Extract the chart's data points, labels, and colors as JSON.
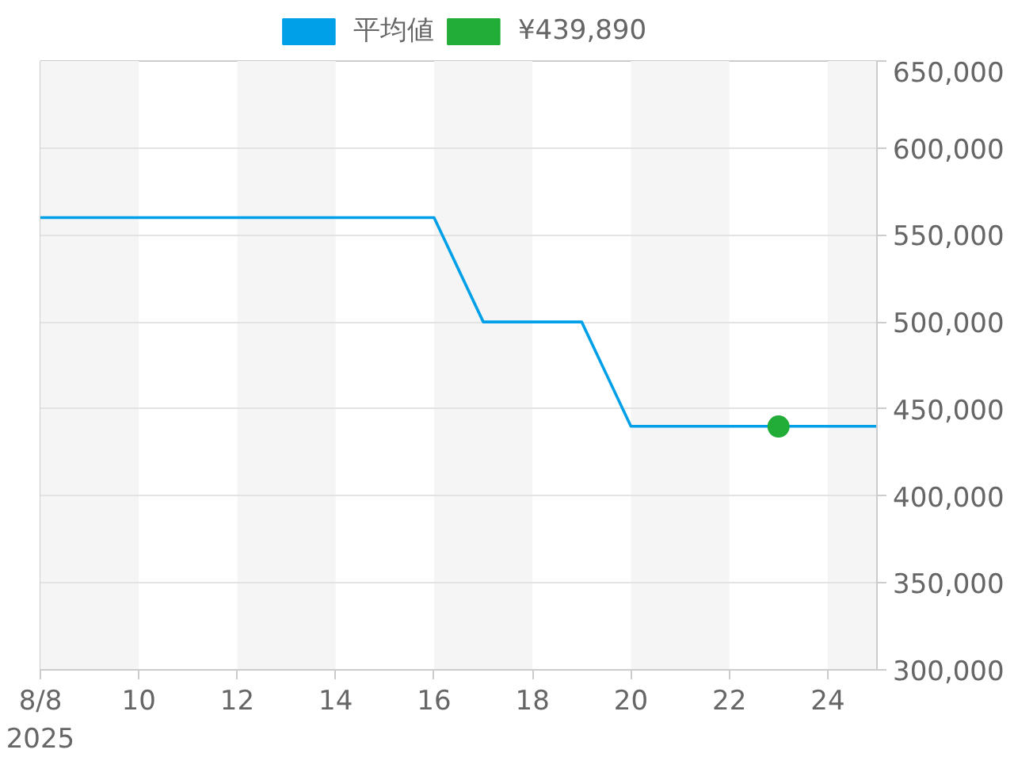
{
  "chart_data": {
    "type": "line",
    "x": [
      "2025-08-08",
      "2025-08-09",
      "2025-08-10",
      "2025-08-11",
      "2025-08-12",
      "2025-08-13",
      "2025-08-14",
      "2025-08-15",
      "2025-08-16",
      "2025-08-17",
      "2025-08-18",
      "2025-08-19",
      "2025-08-20",
      "2025-08-21",
      "2025-08-22",
      "2025-08-23",
      "2025-08-24",
      "2025-08-25"
    ],
    "series": [
      {
        "name": "平均値",
        "color": "#00a0e9",
        "line_style": "solid",
        "values": [
          560000,
          560000,
          560000,
          560000,
          560000,
          560000,
          560000,
          560000,
          560000,
          500000,
          500000,
          500000,
          440000,
          440000,
          440000,
          440000,
          440000,
          440000
        ]
      },
      {
        "name": "¥439,890",
        "type": "scatter",
        "marker": "circle",
        "color": "#22ac38",
        "x": [
          "2025-08-23"
        ],
        "values": [
          439890
        ]
      }
    ],
    "xlim": [
      "2025-08-08",
      "2025-08-25"
    ],
    "xticks": [
      {
        "value": "2025-08-08",
        "label": "8/8\n2025"
      },
      {
        "value": "2025-08-10",
        "label": "10"
      },
      {
        "value": "2025-08-12",
        "label": "12"
      },
      {
        "value": "2025-08-14",
        "label": "14"
      },
      {
        "value": "2025-08-16",
        "label": "16"
      },
      {
        "value": "2025-08-18",
        "label": "18"
      },
      {
        "value": "2025-08-20",
        "label": "20"
      },
      {
        "value": "2025-08-22",
        "label": "22"
      },
      {
        "value": "2025-08-24",
        "label": "24"
      }
    ],
    "ylim": [
      300000,
      650000
    ],
    "yticks": [
      {
        "value": 300000,
        "label": "300,000"
      },
      {
        "value": 350000,
        "label": "350,000"
      },
      {
        "value": 400000,
        "label": "400,000"
      },
      {
        "value": 450000,
        "label": "450,000"
      },
      {
        "value": 500000,
        "label": "500,000"
      },
      {
        "value": 550000,
        "label": "550,000"
      },
      {
        "value": 600000,
        "label": "600,000"
      },
      {
        "value": 650000,
        "label": "650,000"
      }
    ],
    "bands": [
      {
        "axis": "x",
        "from": "2025-08-08",
        "to": "2025-08-10",
        "color": "#f5f5f5"
      },
      {
        "axis": "x",
        "from": "2025-08-12",
        "to": "2025-08-14",
        "color": "#f5f5f5"
      },
      {
        "axis": "x",
        "from": "2025-08-16",
        "to": "2025-08-18",
        "color": "#f5f5f5"
      },
      {
        "axis": "x",
        "from": "2025-08-20",
        "to": "2025-08-22",
        "color": "#f5f5f5"
      },
      {
        "axis": "x",
        "from": "2025-08-24",
        "to": "2025-08-25",
        "color": "#f5f5f5"
      }
    ],
    "grid": "y",
    "legend": "top"
  }
}
